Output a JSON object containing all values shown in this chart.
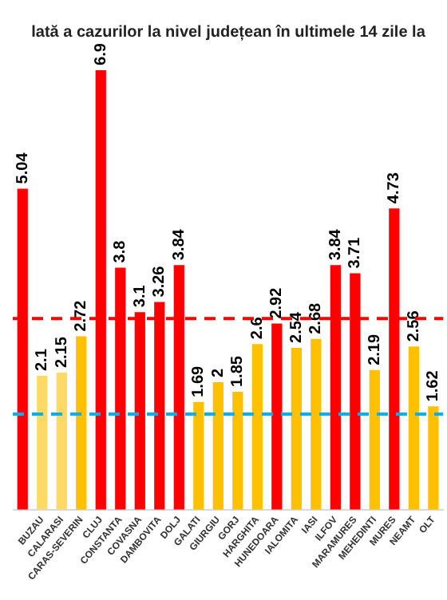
{
  "chart_data": {
    "type": "bar",
    "title": "lată a cazurilor la nivel județean în ultimele 14 zile la",
    "categories": [
      null,
      "BUZAU",
      "CALARASI",
      "CARAS-SEVERIN",
      "CLUJ",
      "CONSTANTA",
      "COVASNA",
      "DAMBOVITA",
      "DOLJ",
      "GALATI",
      "GIURGIU",
      "GORJ",
      "HARGHITA",
      "HUNEDOARA",
      "IALOMITA",
      "IASI",
      "ILFOV",
      "MARAMURES",
      "MEHEDINTI",
      "MURES",
      "NEAMT",
      "OLT"
    ],
    "values": [
      5.04,
      2.1,
      2.15,
      2.72,
      6.9,
      3.8,
      3.1,
      3.26,
      3.84,
      1.69,
      2,
      1.85,
      2.6,
      2.92,
      2.54,
      2.68,
      3.84,
      3.71,
      2.19,
      4.73,
      2.56,
      1.62
    ],
    "colors": [
      "#ff0000",
      "#ffd966",
      "#ffd966",
      "#ffc000",
      "#ff0000",
      "#ff0000",
      "#ff0000",
      "#ff0000",
      "#ff0000",
      "#ffc000",
      "#ffc000",
      "#ffc000",
      "#ffc000",
      "#ff0000",
      "#ffc000",
      "#ffc000",
      "#ff0000",
      "#ff0000",
      "#ffc000",
      "#ff0000",
      "#ffc000",
      "#ffc000"
    ],
    "data_labels": true,
    "grid": false,
    "legend": false,
    "ref_lines": [
      {
        "axis": "y",
        "value": 3,
        "color": "#ff0000",
        "line_style": "dashed"
      },
      {
        "axis": "y",
        "value": 1.5,
        "color": "#00b0f0",
        "line_style": "dashed"
      }
    ]
  }
}
